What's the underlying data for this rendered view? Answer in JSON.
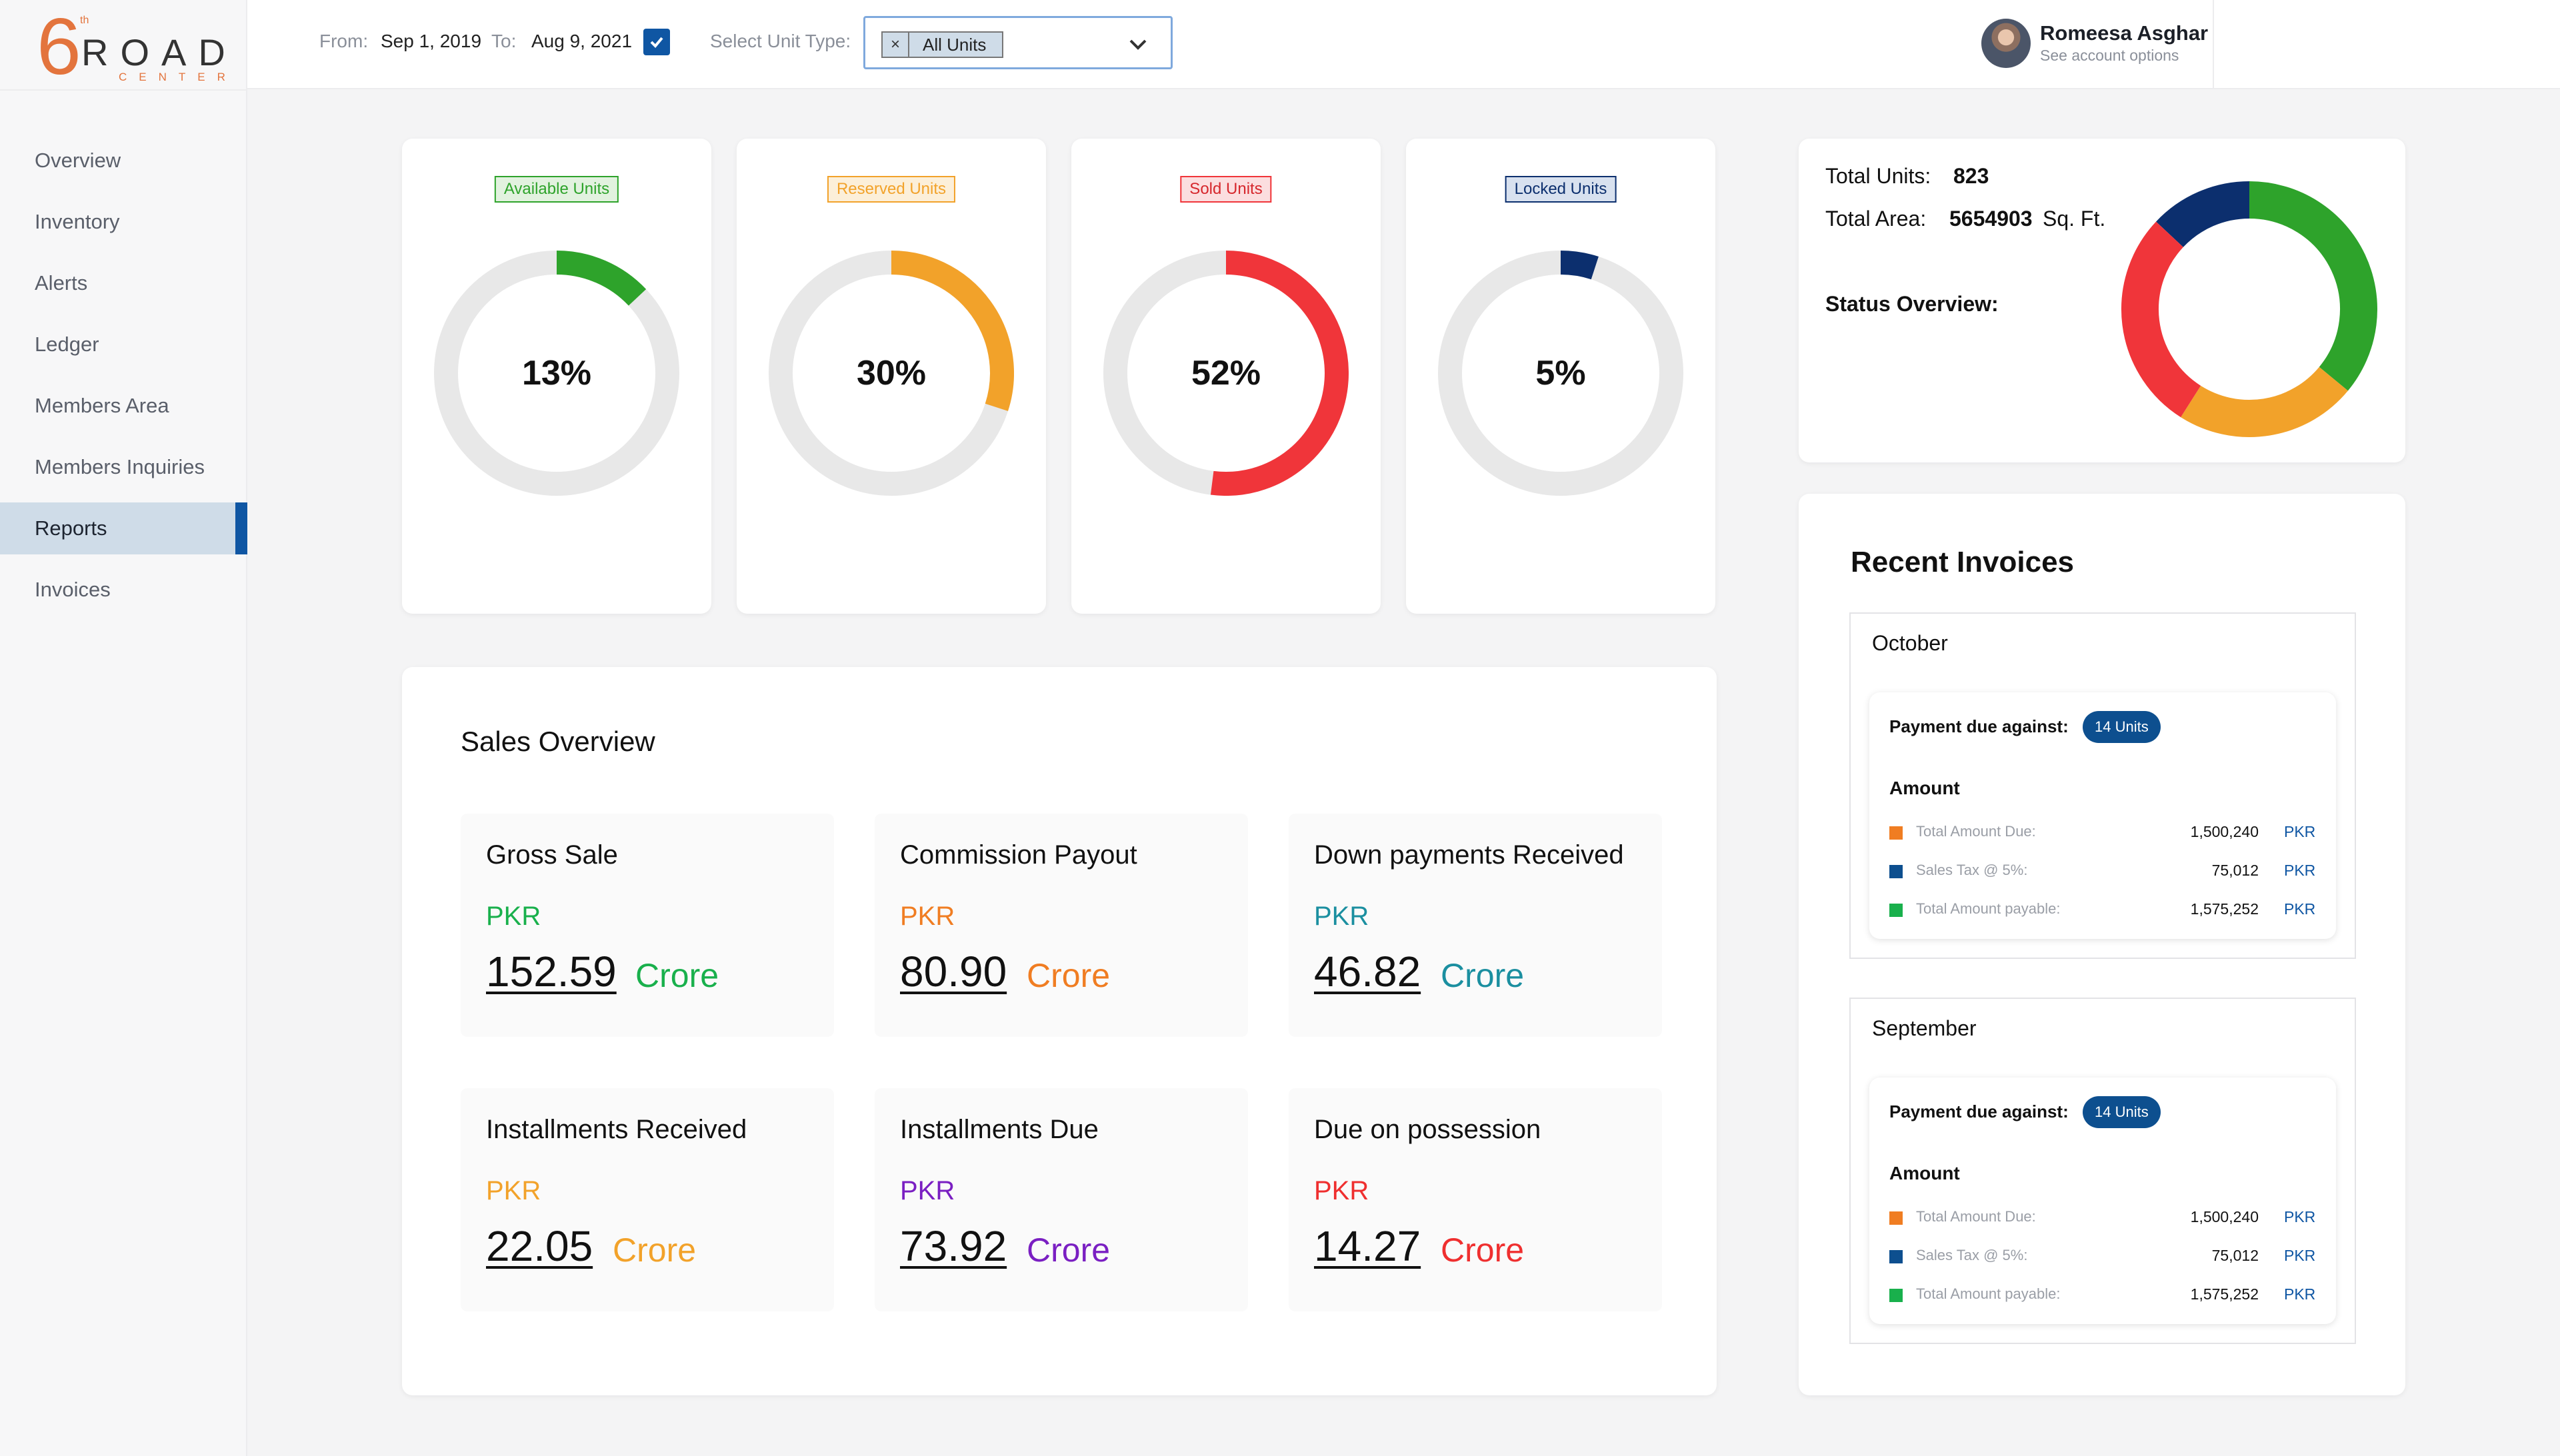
{
  "logo": {
    "six": "6",
    "th": "th",
    "road": "ROAD",
    "center": "CENTER"
  },
  "sidebar": {
    "items": [
      {
        "label": "Overview"
      },
      {
        "label": "Inventory"
      },
      {
        "label": "Alerts"
      },
      {
        "label": "Ledger"
      },
      {
        "label": "Members Area"
      },
      {
        "label": "Members Inquiries"
      },
      {
        "label": "Reports",
        "active": true
      },
      {
        "label": "Invoices"
      }
    ]
  },
  "filters": {
    "from_label": "From:",
    "from_value": "Sep 1, 2019",
    "to_label": "To:",
    "to_value": "Aug 9, 2021",
    "unit_type_label": "Select Unit Type:",
    "unit_type_value": "All Units",
    "chip_remove": "×"
  },
  "user": {
    "name": "Romeesa Asghar",
    "subtitle": "See account options"
  },
  "unit_cards": [
    {
      "tag": "Available Units",
      "percent": "13%",
      "fraction": 0.13,
      "color": "#2ea32b",
      "tag_bg": "#e2f2df",
      "tag_border": "#2ea32b",
      "tag_color": "#2ea32b"
    },
    {
      "tag": "Reserved Units",
      "percent": "30%",
      "fraction": 0.3,
      "color": "#f2a22a",
      "tag_bg": "#fcefd9",
      "tag_border": "#f2a22a",
      "tag_color": "#f2a22a"
    },
    {
      "tag": "Sold Units",
      "percent": "52%",
      "fraction": 0.52,
      "color": "#f0353a",
      "tag_bg": "#fbdedf",
      "tag_border": "#f0353a",
      "tag_color": "#d6272c"
    },
    {
      "tag": "Locked Units",
      "percent": "5%",
      "fraction": 0.05,
      "color": "#0c2f6e",
      "tag_bg": "#d8e1ef",
      "tag_border": "#0c2f6e",
      "tag_color": "#0c2f6e"
    }
  ],
  "status": {
    "total_units_label": "Total Units:",
    "total_units_value": "823",
    "total_area_label": "Total Area:",
    "total_area_value": "5654903",
    "total_area_unit": "Sq. Ft.",
    "overview_label": "Status Overview:",
    "segments": [
      {
        "name": "available",
        "fraction": 0.13,
        "color": "#0c2f6e"
      },
      {
        "name": "green",
        "fraction": 0.36,
        "color": "#2ea32b"
      },
      {
        "name": "orange",
        "fraction": 0.23,
        "color": "#f2a22a"
      },
      {
        "name": "red",
        "fraction": 0.28,
        "color": "#f0353a"
      }
    ]
  },
  "sales": {
    "title": "Sales Overview",
    "items": [
      {
        "title": "Gross Sale",
        "currency": "PKR",
        "amount": "152.59",
        "unit": "Crore",
        "color": "#19b04c"
      },
      {
        "title": "Commission Payout",
        "currency": "PKR",
        "amount": "80.90",
        "unit": "Crore",
        "color": "#f07d22"
      },
      {
        "title": "Down payments Received",
        "currency": "PKR",
        "amount": "46.82",
        "unit": "Crore",
        "color": "#1b8fa0"
      },
      {
        "title": "Installments Received",
        "currency": "PKR",
        "amount": "22.05",
        "unit": "Crore",
        "color": "#f2a22a"
      },
      {
        "title": "Installments Due",
        "currency": "PKR",
        "amount": "73.92",
        "unit": "Crore",
        "color": "#7a1fc2"
      },
      {
        "title": "Due on possession",
        "currency": "PKR",
        "amount": "14.27",
        "unit": "Crore",
        "color": "#ef2f2f"
      }
    ]
  },
  "invoices": {
    "title": "Recent Invoices",
    "months": [
      {
        "name": "October",
        "payment_label": "Payment due against:",
        "units_pill": "14 Units",
        "amount_label": "Amount",
        "rows": [
          {
            "label": "Total Amount Due:",
            "value": "1,500,240",
            "currency": "PKR",
            "color": "#f07d22"
          },
          {
            "label": "Sales Tax @ 5%:",
            "value": "75,012",
            "currency": "PKR",
            "color": "#0d4f8f"
          },
          {
            "label": "Total Amount payable:",
            "value": "1,575,252",
            "currency": "PKR",
            "color": "#19b04c"
          }
        ]
      },
      {
        "name": "September",
        "payment_label": "Payment due against:",
        "units_pill": "14 Units",
        "amount_label": "Amount",
        "rows": [
          {
            "label": "Total Amount Due:",
            "value": "1,500,240",
            "currency": "PKR",
            "color": "#f07d22"
          },
          {
            "label": "Sales Tax @ 5%:",
            "value": "75,012",
            "currency": "PKR",
            "color": "#0d4f8f"
          },
          {
            "label": "Total Amount payable:",
            "value": "1,575,252",
            "currency": "PKR",
            "color": "#19b04c"
          }
        ]
      }
    ]
  }
}
